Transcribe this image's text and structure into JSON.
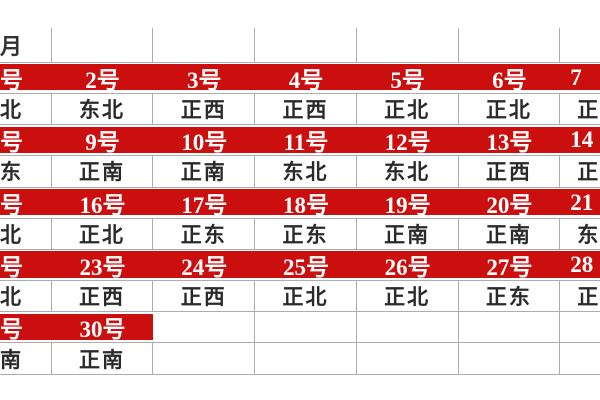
{
  "colors": {
    "highlight_red": "#cb0f0f",
    "day_text": "#ffffff",
    "direction_text": "#2a2a2a",
    "month_text": "#333333",
    "gridline": "#adadad",
    "background": "#ffffff"
  },
  "table": {
    "description_labels": {
      "month_suffix": "月",
      "day_suffix": "号"
    },
    "rows": [
      {
        "kind": "header",
        "red_cols": 0,
        "cells": [
          "月",
          "",
          "",
          "",
          "",
          "",
          ""
        ]
      },
      {
        "kind": "day",
        "red_cols": 7,
        "cells": [
          "号",
          "2号",
          "3号",
          "4号",
          "5号",
          "6号",
          "7"
        ]
      },
      {
        "kind": "direction",
        "red_cols": 0,
        "cells": [
          "北",
          "东北",
          "正西",
          "正西",
          "正北",
          "正北",
          "正"
        ]
      },
      {
        "kind": "day",
        "red_cols": 7,
        "cells": [
          "号",
          "9号",
          "10号",
          "11号",
          "12号",
          "13号",
          "14"
        ]
      },
      {
        "kind": "direction",
        "red_cols": 0,
        "cells": [
          "东",
          "正南",
          "正南",
          "东北",
          "东北",
          "正西",
          "正"
        ]
      },
      {
        "kind": "day",
        "red_cols": 7,
        "cells": [
          "号",
          "16号",
          "17号",
          "18号",
          "19号",
          "20号",
          "21"
        ]
      },
      {
        "kind": "direction",
        "red_cols": 0,
        "cells": [
          "北",
          "正北",
          "正东",
          "正东",
          "正南",
          "正南",
          "东"
        ]
      },
      {
        "kind": "day",
        "red_cols": 7,
        "cells": [
          "号",
          "23号",
          "24号",
          "25号",
          "26号",
          "27号",
          "28"
        ]
      },
      {
        "kind": "direction",
        "red_cols": 0,
        "cells": [
          "北",
          "正西",
          "正西",
          "正北",
          "正北",
          "正东",
          "正"
        ]
      },
      {
        "kind": "day",
        "red_cols": 2,
        "cells": [
          "号",
          "30号",
          "",
          "",
          "",
          "",
          ""
        ]
      },
      {
        "kind": "direction",
        "red_cols": 0,
        "cells": [
          "南",
          "正南",
          "",
          "",
          "",
          "",
          ""
        ]
      }
    ]
  }
}
